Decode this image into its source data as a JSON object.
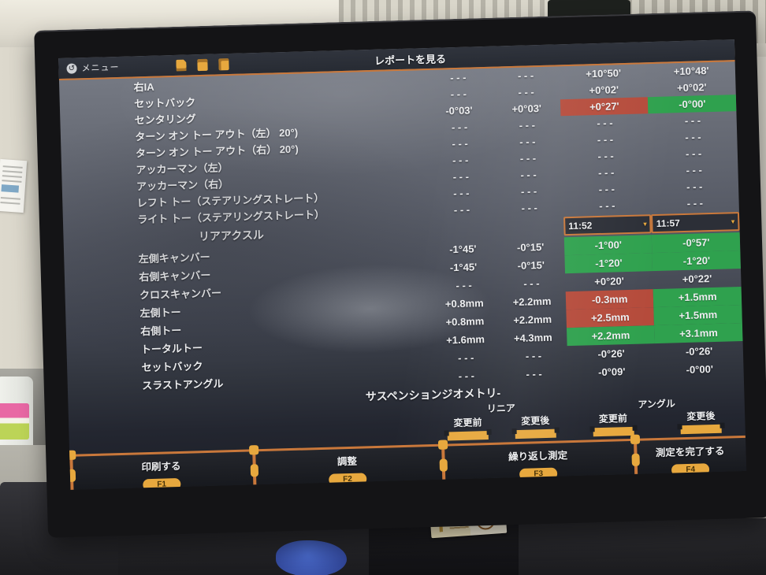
{
  "colors": {
    "accent_orange": "#c9783b",
    "highlight_red": "#b54b3b",
    "highlight_green": "#2fa14e",
    "pill_orange": "#e7a83e",
    "screen_text": "#edeef0"
  },
  "menu_bar": {
    "menu_label": "メニュー",
    "report_title": "レポートを見る"
  },
  "front_axle": {
    "rows": [
      {
        "label": "右IA",
        "values": [
          "- - -",
          "- - -",
          "+10°50'",
          "+10°48'"
        ],
        "hl": [
          "",
          ""
        ]
      },
      {
        "label": "セットバック",
        "values": [
          "- - -",
          "- - -",
          "+0°02'",
          "+0°02'"
        ],
        "hl": [
          "",
          ""
        ]
      },
      {
        "label": "センタリング",
        "values": [
          "-0°03'",
          "+0°03'",
          "+0°27'",
          "-0°00'"
        ],
        "hl": [
          "red",
          "green"
        ]
      },
      {
        "label": "ターン オン トー アウト（左） 20°)",
        "values": [
          "- - -",
          "- - -",
          "- - -",
          "- - -"
        ],
        "hl": [
          "",
          ""
        ]
      },
      {
        "label": "ターン オン トー アウト（右） 20°)",
        "values": [
          "- - -",
          "- - -",
          "- - -",
          "- - -"
        ],
        "hl": [
          "",
          ""
        ]
      },
      {
        "label": "アッカーマン（左）",
        "values": [
          "- - -",
          "- - -",
          "- - -",
          "- - -"
        ],
        "hl": [
          "",
          ""
        ]
      },
      {
        "label": "アッカーマン（右）",
        "values": [
          "- - -",
          "- - -",
          "- - -",
          "- - -"
        ],
        "hl": [
          "",
          ""
        ]
      },
      {
        "label": "レフト トー（ステアリングストレート）",
        "values": [
          "- - -",
          "- - -",
          "- - -",
          "- - -"
        ],
        "hl": [
          "",
          ""
        ]
      },
      {
        "label": "ライト トー（ステアリングストレート）",
        "values": [
          "- - -",
          "- - -",
          "- - -",
          "- - -"
        ],
        "hl": [
          "",
          ""
        ]
      }
    ]
  },
  "rear_axle": {
    "section_title": "リアアクスル",
    "measure_times": [
      "11:52",
      "11:57"
    ],
    "rows": [
      {
        "label": "左側キャンバー",
        "values": [
          "-1°45'",
          "-0°15'",
          "-1°00'",
          "-0°57'"
        ],
        "hl": [
          "green",
          "green"
        ]
      },
      {
        "label": "右側キャンバー",
        "values": [
          "-1°45'",
          "-0°15'",
          "-1°20'",
          "-1°20'"
        ],
        "hl": [
          "green",
          "green"
        ]
      },
      {
        "label": "クロスキャンバー",
        "values": [
          "- - -",
          "- - -",
          "+0°20'",
          "+0°22'"
        ],
        "hl": [
          "",
          ""
        ]
      },
      {
        "label": "左側トー",
        "values": [
          "+0.8mm",
          "+2.2mm",
          "-0.3mm",
          "+1.5mm"
        ],
        "hl": [
          "red",
          "green"
        ]
      },
      {
        "label": "右側トー",
        "values": [
          "+0.8mm",
          "+2.2mm",
          "+2.5mm",
          "+1.5mm"
        ],
        "hl": [
          "red",
          "green"
        ]
      },
      {
        "label": "トータルトー",
        "values": [
          "+1.6mm",
          "+4.3mm",
          "+2.2mm",
          "+3.1mm"
        ],
        "hl": [
          "green",
          "green"
        ]
      },
      {
        "label": "セットバック",
        "values": [
          "- - -",
          "- - -",
          "-0°26'",
          "-0°26'"
        ],
        "hl": [
          "",
          ""
        ]
      },
      {
        "label": "スラストアングル",
        "values": [
          "- - -",
          "- - -",
          "-0°09'",
          "-0°00'"
        ],
        "hl": [
          "",
          ""
        ]
      }
    ]
  },
  "suspension": {
    "title": "サスペンションジオメトリ-",
    "groups": [
      "リニア",
      "アングル"
    ],
    "columns": [
      "変更前",
      "変更後",
      "変更前",
      "変更後"
    ]
  },
  "function_keys": [
    {
      "label": "印刷する",
      "key": "F1"
    },
    {
      "label": "調整",
      "key": "F2"
    },
    {
      "label": "繰り返し測定",
      "key": "F3"
    },
    {
      "label": "測定を完了する",
      "key": "F4"
    }
  ]
}
